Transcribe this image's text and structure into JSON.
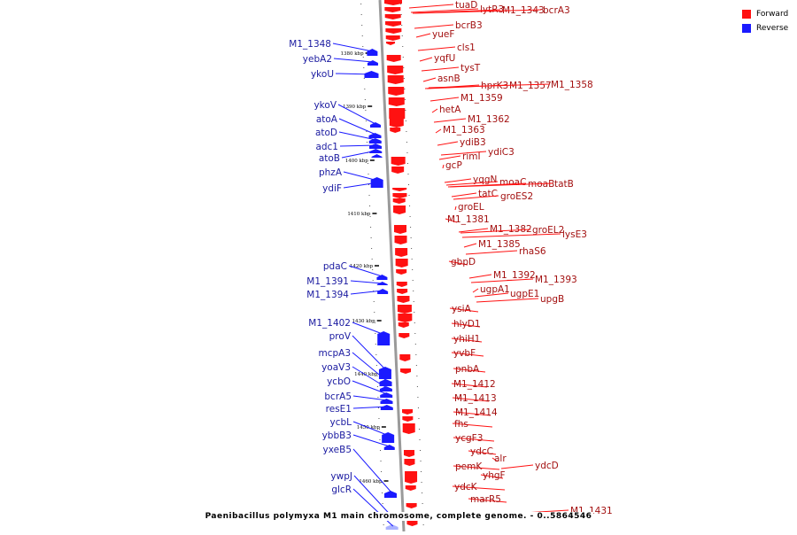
{
  "legend": {
    "forward_label": "Forward",
    "forward_color": "#ff1111",
    "reverse_label": "Reverse",
    "reverse_color": "#1a1aff"
  },
  "caption": "Paenibacillus polymyxa M1 main chromosome, complete genome. - 0..5864546",
  "scale_unit": "kbp",
  "ticks_kbp": [
    1380,
    1390,
    1400,
    1410,
    1420,
    1430,
    1440,
    1450,
    1460
  ],
  "forward_genes": [
    "tuaD",
    "lytR3",
    "M1_1343",
    "bcrA3",
    "bcrB3",
    "yueF",
    "cls1",
    "yqfU",
    "tysT",
    "asnB",
    "hprK3",
    "M1_1357",
    "M1_1358",
    "M1_1359",
    "hetA",
    "M1_1362",
    "M1_1363",
    "ydiB3",
    "rimI",
    "ydiC3",
    "gcP",
    "yqgN",
    "moaC",
    "moaB",
    "tatB",
    "tatC",
    "groES2",
    "groEL",
    "M1_1381",
    "M1_1382",
    "groEL2",
    "lysE3",
    "M1_1385",
    "rhaS6",
    "gbpD",
    "M1_1392",
    "M1_1393",
    "ugpA1",
    "ugpE1",
    "upgB",
    "ysiA",
    "hlyD1",
    "yhiH1",
    "yvbF",
    "pnbA",
    "M1_1412",
    "M1_1413",
    "M1_1414",
    "fhs",
    "ycgF3",
    "ydcC",
    "alr",
    "pemK",
    "ydcD",
    "yhgF",
    "ydcK",
    "marR5",
    "M1_1431"
  ],
  "reverse_genes": [
    "M1_1348",
    "yebA2",
    "ykoU",
    "ykoV",
    "atoA",
    "atoD",
    "adc1",
    "atoB",
    "phzA",
    "ydiF",
    "pdaC",
    "M1_1391",
    "M1_1394",
    "M1_1402",
    "proV",
    "mcpA3",
    "yoaV3",
    "ycbO",
    "bcrA5",
    "resE1",
    "ycbL",
    "ybbB3",
    "yxeB5",
    "ywpJ",
    "glcR"
  ]
}
